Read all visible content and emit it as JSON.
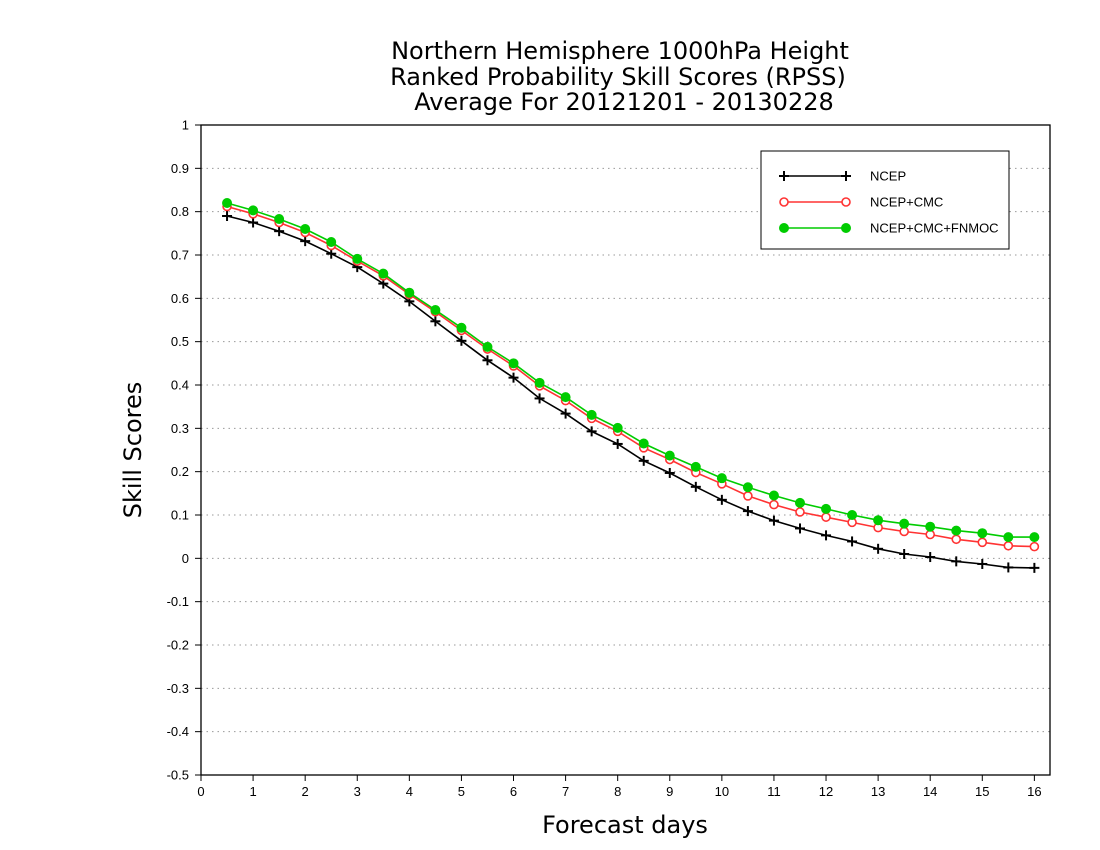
{
  "chart_data": {
    "type": "line",
    "title_lines": [
      "Northern Hemisphere 1000hPa Height",
      "Ranked Probability Skill Scores (RPSS)",
      "Average For 20121201 - 20130228"
    ],
    "xlabel": "Forecast days",
    "ylabel": "Skill Scores",
    "xlim": [
      0,
      16.3
    ],
    "ylim": [
      -0.5,
      1
    ],
    "x_ticks": [
      0,
      1,
      2,
      3,
      4,
      5,
      6,
      7,
      8,
      9,
      10,
      11,
      12,
      13,
      14,
      15,
      16
    ],
    "x_tick_labels": [
      "0",
      "1",
      "2",
      "3",
      "4",
      "5",
      "6",
      "7",
      "8",
      "9",
      "10",
      "11",
      "12",
      "13",
      "14",
      "15",
      "16"
    ],
    "y_ticks": [
      -0.5,
      -0.4,
      -0.3,
      -0.2,
      -0.1,
      0,
      0.1,
      0.2,
      0.3,
      0.4,
      0.5,
      0.6,
      0.7,
      0.8,
      0.9,
      1
    ],
    "y_tick_labels": [
      "-0.5",
      "-0.4",
      "-0.3",
      "-0.2",
      "-0.1",
      "0",
      "0.1",
      "0.2",
      "0.3",
      "0.4",
      "0.5",
      "0.6",
      "0.7",
      "0.8",
      "0.9",
      "1"
    ],
    "grid": "horizontal-dotted",
    "legend_position": "top-right",
    "x": [
      0.5,
      1.0,
      1.5,
      2.0,
      2.5,
      3.0,
      3.5,
      4.0,
      4.5,
      5.0,
      5.5,
      6.0,
      6.5,
      7.0,
      7.5,
      8.0,
      8.5,
      9.0,
      9.5,
      10.0,
      10.5,
      11.0,
      11.5,
      12.0,
      12.5,
      13.0,
      13.5,
      14.0,
      14.5,
      15.0,
      15.5,
      16.0
    ],
    "series": [
      {
        "name": "NCEP",
        "color": "#000000",
        "marker": "plus",
        "values": [
          0.79,
          0.775,
          0.755,
          0.732,
          0.703,
          0.672,
          0.634,
          0.593,
          0.547,
          0.502,
          0.457,
          0.417,
          0.369,
          0.334,
          0.293,
          0.264,
          0.225,
          0.197,
          0.165,
          0.135,
          0.109,
          0.087,
          0.069,
          0.053,
          0.039,
          0.022,
          0.01,
          0.003,
          -0.007,
          -0.013,
          -0.021,
          -0.022
        ]
      },
      {
        "name": "NCEP+CMC",
        "color": "#ff3333",
        "marker": "open-circle",
        "values": [
          0.812,
          0.795,
          0.775,
          0.752,
          0.722,
          0.686,
          0.652,
          0.609,
          0.569,
          0.526,
          0.483,
          0.444,
          0.398,
          0.364,
          0.323,
          0.293,
          0.255,
          0.228,
          0.198,
          0.172,
          0.144,
          0.124,
          0.107,
          0.095,
          0.083,
          0.071,
          0.062,
          0.055,
          0.044,
          0.037,
          0.029,
          0.027
        ]
      },
      {
        "name": "NCEP+CMC+FNMOC",
        "color": "#00cc00",
        "marker": "filled-circle",
        "values": [
          0.82,
          0.803,
          0.783,
          0.76,
          0.73,
          0.691,
          0.657,
          0.613,
          0.573,
          0.532,
          0.488,
          0.45,
          0.405,
          0.372,
          0.331,
          0.301,
          0.265,
          0.237,
          0.211,
          0.185,
          0.164,
          0.145,
          0.128,
          0.114,
          0.1,
          0.088,
          0.08,
          0.073,
          0.064,
          0.058,
          0.049,
          0.049
        ]
      }
    ]
  }
}
